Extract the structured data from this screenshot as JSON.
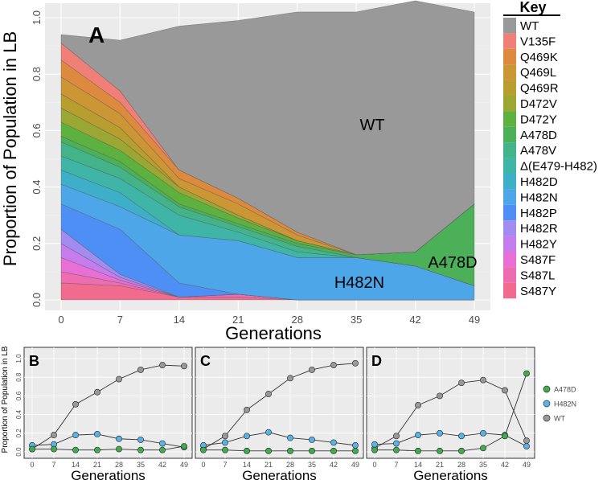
{
  "chart_data": [
    {
      "panel": "A",
      "type": "area",
      "stacked": true,
      "ylabel": "Proportion of Population in LB",
      "xlabel": "Generations",
      "x": [
        0,
        7,
        14,
        21,
        28,
        35,
        42,
        49
      ],
      "xticks": [
        "0",
        "7",
        "14",
        "21",
        "28",
        "35",
        "42",
        "49"
      ],
      "yticks": [
        "0.0",
        "0.2",
        "0.4",
        "0.6",
        "0.8",
        "1.0"
      ],
      "ylim": [
        0,
        1
      ],
      "grid": true,
      "legend_title": "Key",
      "legend_position": "right",
      "stack_order_bottom_to_top": [
        "S487Y",
        "S487L",
        "S487F",
        "H482Y",
        "H482R",
        "H482P",
        "H482N",
        "H482D",
        "Δ(E479-H482)",
        "A478V",
        "A478D",
        "D472Y",
        "D472V",
        "Q469R",
        "Q469L",
        "Q469K",
        "V135F",
        "WT"
      ],
      "series": [
        {
          "name": "WT",
          "color": "#999999",
          "values": [
            0.03,
            0.18,
            0.51,
            0.63,
            0.78,
            0.86,
            0.89,
            0.68
          ]
        },
        {
          "name": "V135F",
          "color": "#F07F78",
          "values": [
            0.06,
            0.04,
            0,
            0,
            0,
            0,
            0,
            0
          ]
        },
        {
          "name": "Q469K",
          "color": "#DE8A3E",
          "values": [
            0.06,
            0.04,
            0.03,
            0.02,
            0.01,
            0,
            0,
            0
          ]
        },
        {
          "name": "Q469L",
          "color": "#CD9634",
          "values": [
            0.06,
            0.05,
            0.03,
            0.04,
            0.02,
            0,
            0,
            0
          ]
        },
        {
          "name": "Q469R",
          "color": "#B89E2E",
          "values": [
            0.05,
            0.04,
            0,
            0,
            0,
            0,
            0,
            0
          ]
        },
        {
          "name": "D472V",
          "color": "#9AA833",
          "values": [
            0.05,
            0.04,
            0.02,
            0.01,
            0,
            0,
            0,
            0
          ]
        },
        {
          "name": "D472Y",
          "color": "#5DB13E",
          "values": [
            0.05,
            0.04,
            0.04,
            0.02,
            0.01,
            0,
            0,
            0
          ]
        },
        {
          "name": "A478D",
          "color": "#4BB057",
          "values": [
            0.02,
            0.02,
            0.01,
            0.01,
            0.01,
            0.01,
            0.05,
            0.29
          ]
        },
        {
          "name": "A478V",
          "color": "#43B38A",
          "values": [
            0.05,
            0.04,
            0.03,
            0.02,
            0.02,
            0,
            0,
            0
          ]
        },
        {
          "name": "Δ(E479-H482)",
          "color": "#3EB5A7",
          "values": [
            0.05,
            0.05,
            0.07,
            0.03,
            0.02,
            0,
            0,
            0
          ]
        },
        {
          "name": "H482D",
          "color": "#3EAFC9",
          "values": [
            0.05,
            0.05,
            0,
            0,
            0,
            0,
            0,
            0
          ]
        },
        {
          "name": "H482N",
          "color": "#4CA6E8",
          "values": [
            0.07,
            0.08,
            0.17,
            0.19,
            0.15,
            0.15,
            0.12,
            0.05
          ]
        },
        {
          "name": "H482P",
          "color": "#4E8FF5",
          "values": [
            0.09,
            0.16,
            0.05,
            0,
            0,
            0,
            0,
            0
          ]
        },
        {
          "name": "H482R",
          "color": "#A38CF0",
          "values": [
            0.05,
            0.01,
            0,
            0,
            0,
            0,
            0,
            0
          ]
        },
        {
          "name": "H482Y",
          "color": "#C57CEC",
          "values": [
            0.05,
            0.01,
            0,
            0,
            0,
            0,
            0,
            0
          ]
        },
        {
          "name": "S487F",
          "color": "#E86FD5",
          "values": [
            0.05,
            0.01,
            0,
            0,
            0,
            0,
            0,
            0
          ]
        },
        {
          "name": "S487L",
          "color": "#ED6DB0",
          "values": [
            0.04,
            0.01,
            0,
            0.01,
            0,
            0,
            0,
            0
          ]
        },
        {
          "name": "S487Y",
          "color": "#F06B8D",
          "values": [
            0.06,
            0.05,
            0.01,
            0.01,
            0,
            0,
            0,
            0
          ]
        }
      ],
      "annotations": [
        {
          "text": "A"
        },
        {
          "text": "WT"
        },
        {
          "text": "H482N"
        },
        {
          "text": "A478D"
        }
      ]
    },
    {
      "panel": "B",
      "type": "line",
      "label": "B",
      "xlabel": "Generations",
      "ylabel": "Proportion of Population in LB",
      "x": [
        0,
        7,
        14,
        21,
        28,
        35,
        42,
        49
      ],
      "ylim": [
        0,
        1
      ],
      "series": [
        {
          "name": "WT",
          "color": "#999999",
          "values": [
            0.03,
            0.18,
            0.51,
            0.64,
            0.78,
            0.88,
            0.93,
            0.92
          ]
        },
        {
          "name": "H482N",
          "color": "#56B4E9",
          "values": [
            0.07,
            0.08,
            0.18,
            0.19,
            0.14,
            0.13,
            0.09,
            0.05
          ]
        },
        {
          "name": "A478D",
          "color": "#3DAE49",
          "values": [
            0.03,
            0.03,
            0.02,
            0.02,
            0.03,
            0.02,
            0.02,
            0.06
          ]
        }
      ]
    },
    {
      "panel": "C",
      "type": "line",
      "label": "C",
      "xlabel": "Generations",
      "x": [
        0,
        7,
        14,
        21,
        28,
        35,
        42,
        49
      ],
      "ylim": [
        0,
        1
      ],
      "series": [
        {
          "name": "WT",
          "color": "#999999",
          "values": [
            0.03,
            0.17,
            0.45,
            0.62,
            0.79,
            0.88,
            0.93,
            0.95
          ]
        },
        {
          "name": "H482N",
          "color": "#56B4E9",
          "values": [
            0.07,
            0.1,
            0.17,
            0.21,
            0.15,
            0.13,
            0.1,
            0.07
          ]
        },
        {
          "name": "A478D",
          "color": "#3DAE49",
          "values": [
            0.02,
            0.02,
            0.01,
            0.01,
            0.01,
            0.01,
            0.01,
            0.01
          ]
        }
      ]
    },
    {
      "panel": "D",
      "type": "line",
      "label": "D",
      "xlabel": "Generations",
      "x": [
        0,
        7,
        14,
        21,
        28,
        35,
        42,
        49
      ],
      "ylim": [
        0,
        1
      ],
      "series": [
        {
          "name": "WT",
          "color": "#999999",
          "values": [
            0.04,
            0.17,
            0.5,
            0.6,
            0.74,
            0.77,
            0.66,
            0.12
          ]
        },
        {
          "name": "H482N",
          "color": "#56B4E9",
          "values": [
            0.08,
            0.09,
            0.18,
            0.2,
            0.17,
            0.2,
            0.18,
            0.06
          ]
        },
        {
          "name": "A478D",
          "color": "#3DAE49",
          "values": [
            0.02,
            0.02,
            0.01,
            0.01,
            0.01,
            0.04,
            0.17,
            0.84
          ]
        }
      ]
    }
  ],
  "small_panels": {
    "xticks": [
      "0",
      "7",
      "14",
      "21",
      "28",
      "35",
      "42",
      "49"
    ],
    "yticks": [
      "0.0",
      "0.2",
      "0.4",
      "0.6",
      "0.8",
      "1.0"
    ],
    "ylabel": "Proportion of Population in LB",
    "xlabel": "Generations",
    "legend": [
      "A478D",
      "H482N",
      "WT"
    ],
    "legend_position": "right"
  }
}
